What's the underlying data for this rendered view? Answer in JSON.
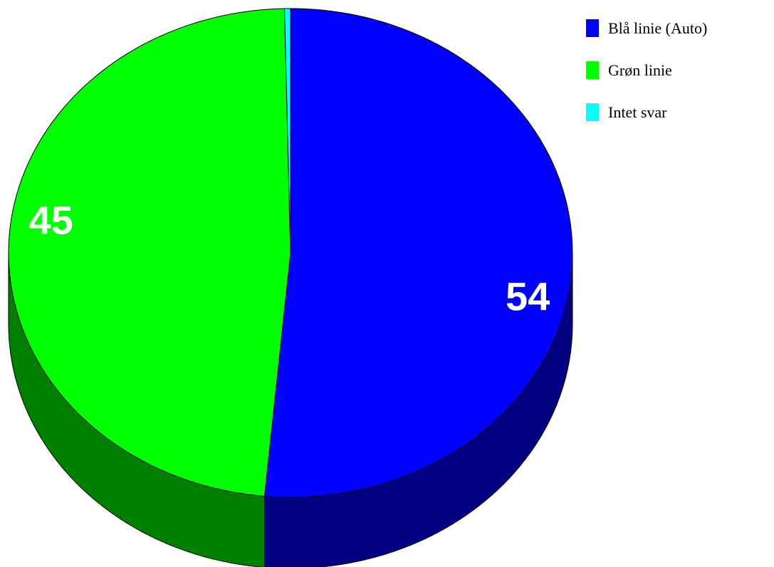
{
  "chart_data": {
    "type": "pie",
    "title": "",
    "style": "3d",
    "categories": [
      "Blå linie (Auto)",
      "Grøn linie",
      "Intet svar"
    ],
    "values": [
      54,
      45,
      1
    ],
    "data_labels": [
      "54",
      "45",
      ""
    ],
    "colors": [
      "#0000ff",
      "#00ff00",
      "#00ffff"
    ],
    "side_colors": [
      "#000080",
      "#008000",
      "#008080"
    ],
    "legend_position": "top-right"
  }
}
